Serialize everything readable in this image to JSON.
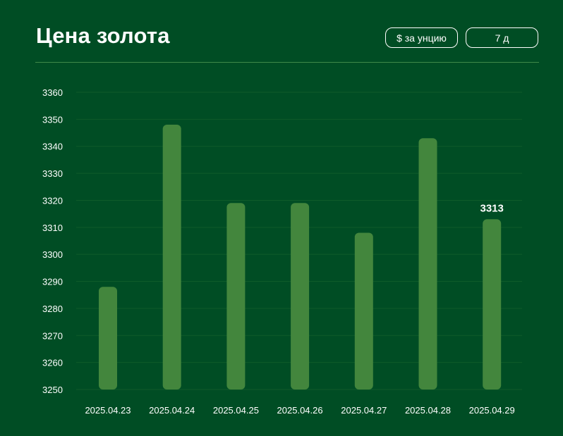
{
  "header": {
    "title": "Цена золота",
    "unit_button": "$ за унцию",
    "range_button": "7 д"
  },
  "colors": {
    "background": "#004d24",
    "bar": "#43863d",
    "grid": "#0f5b2a",
    "text": "#ffffff"
  },
  "chart_data": {
    "type": "bar",
    "categories": [
      "2025.04.23",
      "2025.04.24",
      "2025.04.25",
      "2025.04.26",
      "2025.04.27",
      "2025.04.28",
      "2025.04.29"
    ],
    "values": [
      3288,
      3348,
      3319,
      3319,
      3308,
      3343,
      3313
    ],
    "ylim": [
      3250,
      3360
    ],
    "yticks": [
      3250,
      3260,
      3270,
      3280,
      3290,
      3300,
      3310,
      3320,
      3330,
      3340,
      3350,
      3360
    ],
    "annotations": [
      {
        "category": "2025.04.29",
        "text": "3313"
      }
    ],
    "grid": true,
    "title": "",
    "xlabel": "",
    "ylabel": ""
  }
}
